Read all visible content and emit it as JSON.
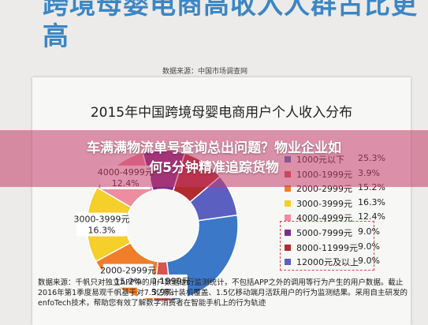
{
  "headline": "跨境母婴电商高收入人群占比更高",
  "source_top": "数据来源：中国市场调查网",
  "banner": {
    "line1": "车满满物流单号查询总出问题？物业企业如",
    "line2": "何5分钟精准追踪货物"
  },
  "footnote": "数据来源：千帆只对独立APP中的用户数据进行监测统计，不包括APP之外的调用等行为产生的用户数据。截止2016年第1季度易观千帆基于对7.5亿累计装机覆盖、1.5亿移动端月活跃用户的行为监测结果。采用自主研发的enfoTech技术，帮助您有效了解数字消费者在智能手机上的行为轨迹",
  "chart_data": {
    "type": "pie",
    "title": "2015年中国跨境母婴电商用户个人收入分布",
    "categories": [
      "1000元以下",
      "1000-1999元",
      "2000-2999元",
      "3000-3999元",
      "4000-4999元",
      "5000-7999元",
      "8000-11999元",
      "12000元及以上"
    ],
    "values": [
      25.3,
      3.9,
      15.2,
      16.3,
      12.4,
      9.0,
      9.0,
      9.0
    ],
    "value_labels": [
      "25.3%",
      "3.9%",
      "15.2%",
      "16.3%",
      "12.4%",
      "9.0%",
      "9.0%",
      "9.0%"
    ],
    "colors": [
      "#3c78c8",
      "#d9534f",
      "#f07d2a",
      "#f5cf2a",
      "#ee8ca0",
      "#7b2d8c",
      "#b02c2f",
      "#5b5fc0"
    ],
    "legend_position": "right",
    "highlighted": [
      "5000-7999元",
      "8000-11999元",
      "12000元及以上"
    ],
    "slice_labels": [
      {
        "category": "1000-1999元",
        "value": "3.9%"
      },
      {
        "category": "2000-2999元",
        "value": "15.2%"
      },
      {
        "category": "3000-3999元",
        "value": "16.3%"
      },
      {
        "category": "4000-4999元",
        "value": "12.4%"
      }
    ]
  }
}
